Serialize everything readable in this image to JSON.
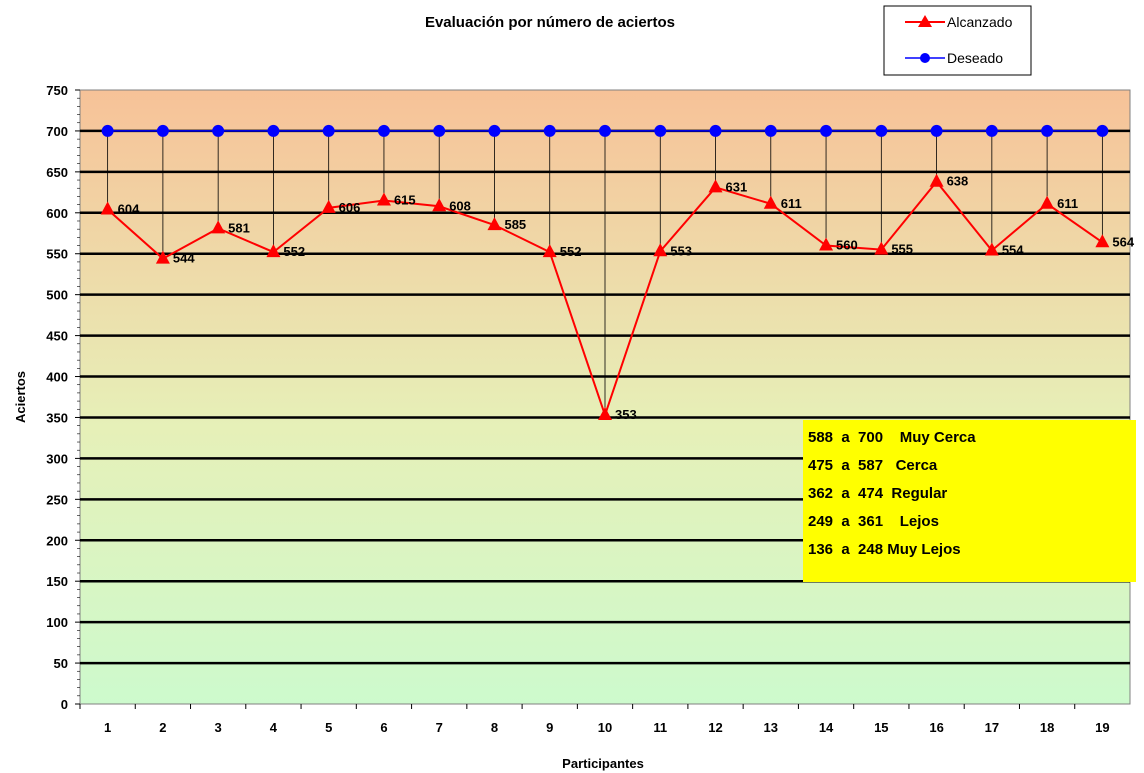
{
  "chart_data": {
    "type": "line",
    "title": "Evaluación por número de aciertos",
    "xlabel": "Participantes",
    "ylabel": "Aciertos",
    "ylim": [
      0,
      750
    ],
    "yticks": [
      "0",
      "50",
      "100",
      "150",
      "200",
      "250",
      "300",
      "350",
      "400",
      "450",
      "500",
      "550",
      "600",
      "650",
      "700",
      "750"
    ],
    "categories": [
      "1",
      "2",
      "3",
      "4",
      "5",
      "6",
      "7",
      "8",
      "9",
      "10",
      "11",
      "12",
      "13",
      "14",
      "15",
      "16",
      "17",
      "18",
      "19"
    ],
    "series": [
      {
        "name": "Alcanzado",
        "color": "#ff0000",
        "marker": "triangle",
        "values": [
          604,
          544,
          581,
          552,
          606,
          615,
          608,
          585,
          552,
          353,
          553,
          631,
          611,
          560,
          555,
          638,
          554,
          611,
          564
        ],
        "labels": [
          "604",
          "544",
          "581",
          "552",
          "606",
          "615",
          "608",
          "585",
          "552",
          "353",
          "553",
          "631",
          "611",
          "560",
          "555",
          "638",
          "554",
          "611",
          "564"
        ]
      },
      {
        "name": "Deseado",
        "color": "#0000ff",
        "marker": "circle",
        "values": [
          700,
          700,
          700,
          700,
          700,
          700,
          700,
          700,
          700,
          700,
          700,
          700,
          700,
          700,
          700,
          700,
          700,
          700,
          700
        ]
      }
    ],
    "grid": true,
    "legend": "top-right",
    "background_gradient": [
      "#f7c298",
      "#cdfacd"
    ],
    "scale_box": {
      "background": "#ffff00",
      "lines": [
        "588  a  700    Muy Cerca",
        "475  a  587   Cerca",
        "362  a  474  Regular",
        "249  a  361    Lejos",
        "136  a  248 Muy Lejos"
      ]
    }
  }
}
